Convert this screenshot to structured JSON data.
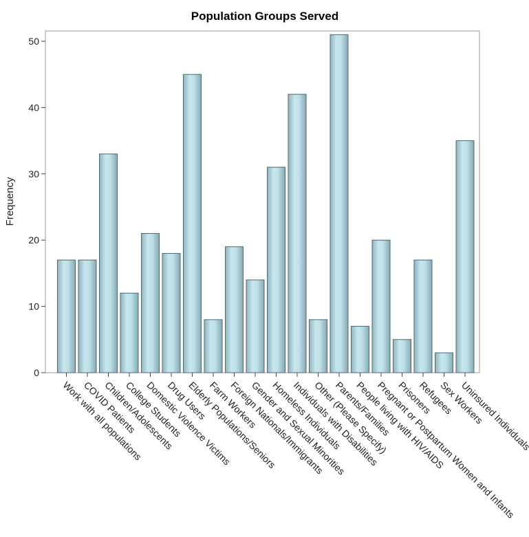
{
  "chart_data": {
    "type": "bar",
    "title": "Population Groups Served",
    "xlabel": "",
    "ylabel": "Frequency",
    "ylim": [
      0,
      52
    ],
    "yticks": [
      0,
      10,
      20,
      30,
      40,
      50
    ],
    "grid": false,
    "bar_color": "#b4d7e0",
    "categories": [
      "Work with all populations",
      "COVID Patients",
      "Children/Adolescents",
      "College Students",
      "Domestic Violence Victims",
      "Drug Users",
      "Elderly Populations/Seniors",
      "Farm Workers",
      "Foreign Nationals/Immigrants",
      "Gender and Sexual Minorities",
      "Homeless Individuals",
      "Individuals with Disabilities",
      "Other (Please Specify)",
      "Parents/Families",
      "People living with HIV/AIDS",
      "Pregnant or Postpartum Women and Infants",
      "Prisoners",
      "Refugees",
      "Sex Workers",
      "Uninsured Individuals"
    ],
    "values": [
      17,
      17,
      33,
      12,
      21,
      18,
      45,
      8,
      19,
      14,
      31,
      42,
      8,
      51,
      7,
      20,
      5,
      17,
      3,
      35
    ]
  }
}
